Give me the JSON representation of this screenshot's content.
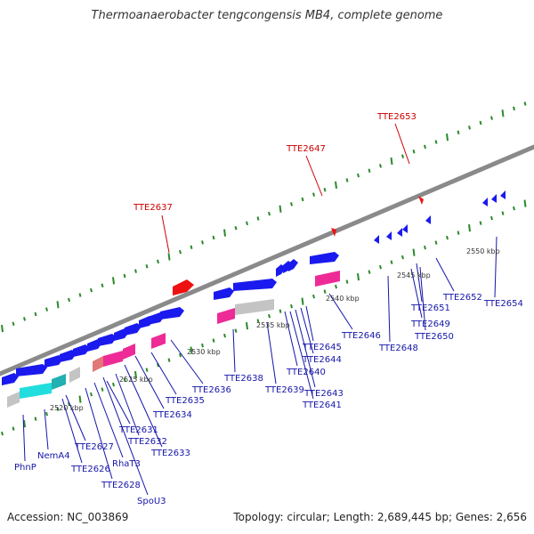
{
  "title": "Thermoanaerobacter tengcongensis MB4, complete genome",
  "footer": {
    "accession": "Accession: NC_003869",
    "summary": "Topology: circular; Length: 2,689,445 bp; Genes: 2,656"
  },
  "colors": {
    "backbone": "#8a8a8a",
    "tick": "#2a8a2a",
    "gene_forward": "#1a1aee",
    "gene_reverse": "#1a1aee",
    "highlight": "#ee1111",
    "rna_pink": "#ee2a96",
    "rna_light": "#e07878",
    "cyan": "#22dddd",
    "teal": "#22b0b0",
    "gray": "#c4c4c4",
    "label_blue": "#1515aa",
    "label_red": "#cc0000"
  },
  "scale_labels": [
    {
      "text": "2520 kbp"
    },
    {
      "text": "2525 kbp"
    },
    {
      "text": "2530 kbp"
    },
    {
      "text": "2535 kbp"
    },
    {
      "text": "2540 kbp"
    },
    {
      "text": "2545 kbp"
    },
    {
      "text": "2550 kbp"
    }
  ],
  "red_genes": [
    {
      "name": "TTE2637"
    },
    {
      "name": "TTE2647"
    },
    {
      "name": "TTE2653"
    }
  ],
  "blue_labels": [
    {
      "name": "PhnP"
    },
    {
      "name": "NemA4"
    },
    {
      "name": "TTE2626"
    },
    {
      "name": "TTE2627"
    },
    {
      "name": "TTE2628"
    },
    {
      "name": "RhaT3"
    },
    {
      "name": "SpoU3"
    },
    {
      "name": "TTE2631"
    },
    {
      "name": "TTE2632"
    },
    {
      "name": "TTE2633"
    },
    {
      "name": "TTE2634"
    },
    {
      "name": "TTE2635"
    },
    {
      "name": "TTE2636"
    },
    {
      "name": "TTE2638"
    },
    {
      "name": "TTE2639"
    },
    {
      "name": "TTE2640"
    },
    {
      "name": "TTE2641"
    },
    {
      "name": "TTE2643"
    },
    {
      "name": "TTE2644"
    },
    {
      "name": "TTE2645"
    },
    {
      "name": "TTE2646"
    },
    {
      "name": "TTE2648"
    },
    {
      "name": "TTE2649"
    },
    {
      "name": "TTE2650"
    },
    {
      "name": "TTE2651"
    },
    {
      "name": "TTE2652"
    },
    {
      "name": "TTE2654"
    }
  ]
}
